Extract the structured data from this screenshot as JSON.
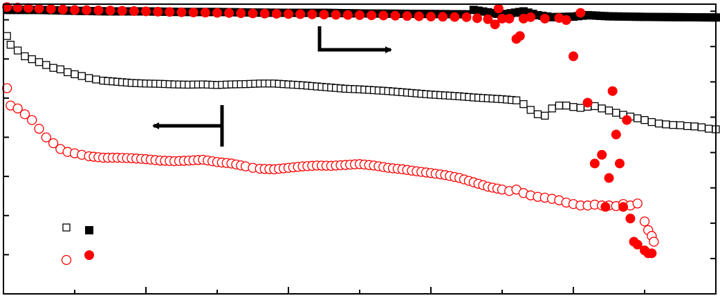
{
  "chart_data": {
    "type": "scatter",
    "title": "",
    "xlabel": "",
    "ylabel_left": "",
    "ylabel_right": "",
    "xlim": [
      0,
      100
    ],
    "ylim_left": [
      0,
      100
    ],
    "ylim_right": [
      0,
      100
    ],
    "grid": false,
    "legend_position": "bottom-left",
    "x_tick_count_major": 5,
    "y_tick_count_left": 7,
    "y_tick_count_right": 8,
    "colors": {
      "black": "#000000",
      "red": "#ff0000"
    },
    "series": [
      {
        "marker": "square-open",
        "color": "#000000",
        "axis": "left",
        "points": [
          [
            0.5,
            89
          ],
          [
            1,
            86
          ],
          [
            2,
            84
          ],
          [
            3,
            82
          ],
          [
            4,
            81
          ],
          [
            5,
            80
          ],
          [
            6,
            79
          ],
          [
            7,
            78
          ],
          [
            8,
            77.5
          ],
          [
            9,
            76.5
          ],
          [
            10,
            75.8
          ],
          [
            11,
            75.2
          ],
          [
            12,
            74.5
          ],
          [
            13,
            74
          ],
          [
            14,
            73.6
          ],
          [
            16,
            73.2
          ],
          [
            18,
            72.8
          ],
          [
            20,
            72.6
          ],
          [
            22,
            72.5
          ],
          [
            24,
            72.3
          ],
          [
            26,
            72.2
          ],
          [
            28,
            72.3
          ],
          [
            30,
            72.1
          ],
          [
            32,
            72.3
          ],
          [
            34,
            72.4
          ],
          [
            36,
            72.6
          ],
          [
            38,
            72.6
          ],
          [
            40,
            72.3
          ],
          [
            42,
            72
          ],
          [
            44,
            71.6
          ],
          [
            46,
            71.2
          ],
          [
            48,
            70.8
          ],
          [
            50,
            70.6
          ],
          [
            52,
            70.3
          ],
          [
            54,
            70
          ],
          [
            56,
            69.6
          ],
          [
            58,
            69.2
          ],
          [
            60,
            68.8
          ],
          [
            62,
            68.5
          ],
          [
            64,
            68.2
          ],
          [
            66,
            67.8
          ],
          [
            68,
            67.5
          ],
          [
            70,
            67.2
          ],
          [
            72,
            66.8
          ],
          [
            73,
            65.5
          ],
          [
            74,
            63.5
          ],
          [
            75,
            62
          ],
          [
            76,
            61.5
          ],
          [
            77,
            64
          ],
          [
            78,
            65
          ],
          [
            79,
            65
          ],
          [
            80,
            64.5
          ],
          [
            81,
            64.2
          ],
          [
            82,
            64.6
          ],
          [
            83,
            64.8
          ],
          [
            84,
            64
          ],
          [
            85,
            63.3
          ],
          [
            86,
            62.5
          ],
          [
            87,
            61.8
          ],
          [
            88,
            61.2
          ],
          [
            89,
            60.6
          ],
          [
            90,
            60
          ],
          [
            91,
            59.3
          ],
          [
            92,
            58.8
          ],
          [
            93,
            58.5
          ],
          [
            94,
            58.3
          ],
          [
            95,
            58.2
          ],
          [
            96,
            57.9
          ],
          [
            97,
            57.8
          ],
          [
            98,
            57.5
          ],
          [
            99,
            57
          ],
          [
            100,
            56.8
          ]
        ]
      },
      {
        "marker": "square-filled",
        "color": "#000000",
        "axis": "right",
        "points": [
          [
            0.5,
            98
          ],
          [
            5,
            98
          ],
          [
            10,
            97.7
          ],
          [
            15,
            97.5
          ],
          [
            20,
            97.5
          ],
          [
            25,
            97.3
          ],
          [
            30,
            97.3
          ],
          [
            35,
            97.1
          ],
          [
            40,
            97
          ],
          [
            45,
            97
          ],
          [
            50,
            96.8
          ],
          [
            55,
            96.7
          ],
          [
            60,
            96.6
          ],
          [
            65,
            96.5
          ],
          [
            66,
            98
          ],
          [
            70,
            96.4
          ],
          [
            73,
            97.5
          ],
          [
            75,
            96.2
          ],
          [
            77,
            95.5
          ],
          [
            80,
            95.7
          ],
          [
            82,
            96.2
          ],
          [
            85,
            95.8
          ],
          [
            90,
            95.6
          ],
          [
            95,
            95.5
          ],
          [
            100,
            95.4
          ]
        ]
      },
      {
        "marker": "circle-open",
        "color": "#ff0000",
        "axis": "left",
        "points": [
          [
            0.5,
            71
          ],
          [
            1,
            65
          ],
          [
            2,
            64
          ],
          [
            3,
            62
          ],
          [
            4,
            60
          ],
          [
            5,
            57
          ],
          [
            6,
            54
          ],
          [
            7,
            52
          ],
          [
            8,
            50
          ],
          [
            9,
            49
          ],
          [
            10,
            48.5
          ],
          [
            11,
            48
          ],
          [
            12,
            47.5
          ],
          [
            14,
            47
          ],
          [
            16,
            47
          ],
          [
            18,
            46.8
          ],
          [
            20,
            46.5
          ],
          [
            22,
            46
          ],
          [
            24,
            45.8
          ],
          [
            26,
            46
          ],
          [
            28,
            46.3
          ],
          [
            30,
            45.5
          ],
          [
            32,
            45
          ],
          [
            34,
            44
          ],
          [
            35,
            43.5
          ],
          [
            36,
            43.2
          ],
          [
            38,
            43
          ],
          [
            40,
            43.5
          ],
          [
            42,
            44
          ],
          [
            44,
            44.3
          ],
          [
            46,
            44.2
          ],
          [
            48,
            44.5
          ],
          [
            50,
            44.8
          ],
          [
            52,
            44.3
          ],
          [
            54,
            43.5
          ],
          [
            56,
            43
          ],
          [
            58,
            42.3
          ],
          [
            60,
            41.7
          ],
          [
            62,
            41
          ],
          [
            64,
            40
          ],
          [
            66,
            38.5
          ],
          [
            68,
            37
          ],
          [
            70,
            36
          ],
          [
            71,
            35.5
          ],
          [
            72,
            36
          ],
          [
            73,
            34.8
          ],
          [
            74,
            34
          ],
          [
            75,
            33.5
          ],
          [
            76,
            33.2
          ],
          [
            77,
            32.8
          ],
          [
            78,
            32.3
          ],
          [
            79,
            31.5
          ],
          [
            80,
            31
          ],
          [
            81,
            30.5
          ],
          [
            82,
            30.5
          ],
          [
            83,
            30.8
          ],
          [
            84,
            30.5
          ],
          [
            85,
            30.5
          ],
          [
            86,
            30.3
          ],
          [
            87,
            31
          ],
          [
            88,
            30.5
          ],
          [
            89,
            31.2
          ],
          [
            90,
            25
          ],
          [
            90.5,
            22
          ],
          [
            91,
            20
          ],
          [
            91.3,
            18
          ]
        ]
      },
      {
        "marker": "circle-filled",
        "color": "#ff0000",
        "axis": "right",
        "points": [
          [
            0.5,
            99
          ],
          [
            5,
            98.5
          ],
          [
            10,
            98
          ],
          [
            15,
            97.8
          ],
          [
            20,
            97.5
          ],
          [
            25,
            97.2
          ],
          [
            30,
            97
          ],
          [
            35,
            96.8
          ],
          [
            40,
            96.6
          ],
          [
            45,
            96.4
          ],
          [
            50,
            96.2
          ],
          [
            55,
            96
          ],
          [
            60,
            95.7
          ],
          [
            65,
            95.5
          ],
          [
            68,
            94.8
          ],
          [
            69,
            93
          ],
          [
            69.5,
            98.5
          ],
          [
            70,
            95
          ],
          [
            71,
            95
          ],
          [
            72,
            88
          ],
          [
            72.5,
            89
          ],
          [
            73,
            95
          ],
          [
            74,
            95.5
          ],
          [
            76,
            95
          ],
          [
            78,
            95.2
          ],
          [
            79,
            94.5
          ],
          [
            80,
            82
          ],
          [
            81,
            97
          ],
          [
            82,
            66
          ],
          [
            83,
            45
          ],
          [
            84,
            48
          ],
          [
            84.5,
            30
          ],
          [
            85,
            40
          ],
          [
            85.5,
            70
          ],
          [
            86,
            55
          ],
          [
            86.5,
            45
          ],
          [
            87,
            30
          ],
          [
            87.5,
            60
          ],
          [
            88,
            26
          ],
          [
            88.5,
            18
          ],
          [
            89,
            17
          ],
          [
            90,
            15
          ],
          [
            90.5,
            14
          ],
          [
            91,
            14
          ]
        ]
      }
    ]
  },
  "annotations": {
    "right_arrow": {
      "direction": "right",
      "points_to": "right"
    },
    "left_arrow": {
      "direction": "left",
      "points_to": "left"
    }
  }
}
